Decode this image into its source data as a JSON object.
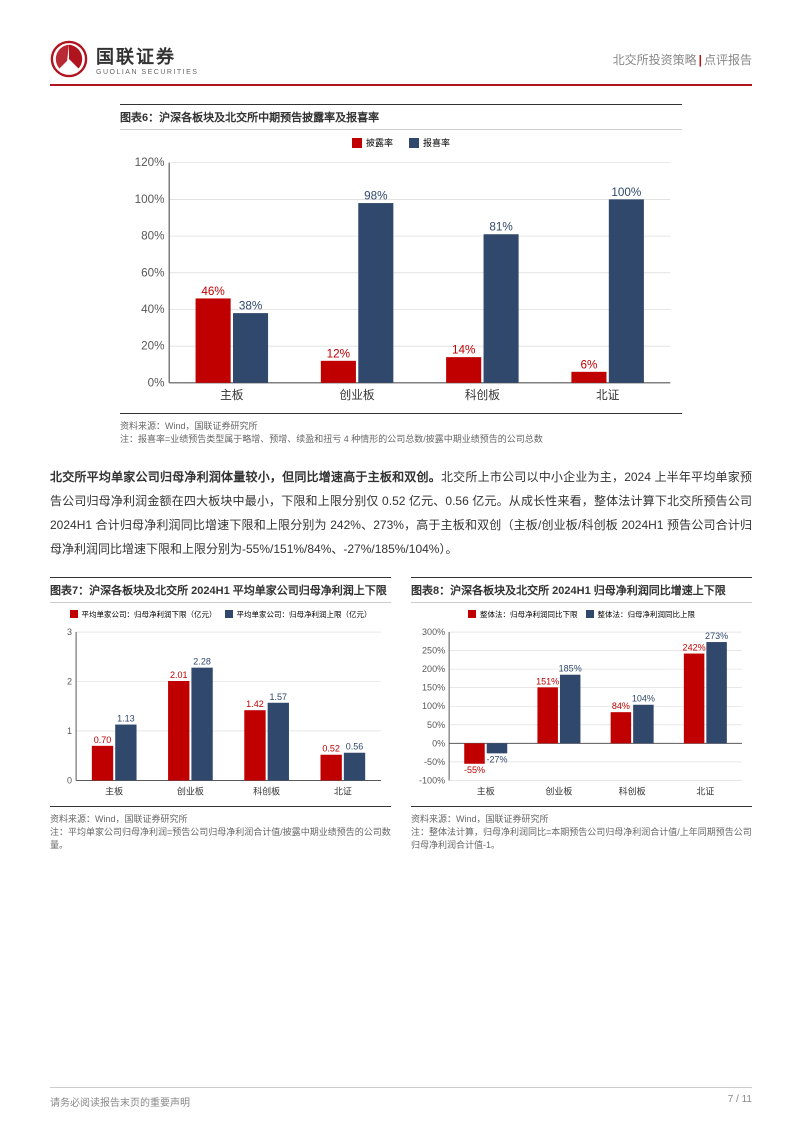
{
  "header": {
    "logo_cn": "国联证券",
    "logo_en": "GUOLIAN SECURITIES",
    "category": "北交所投资策略",
    "doc_type": "点评报告"
  },
  "colors": {
    "red": "#c00000",
    "blue": "#30486c",
    "axis": "#595959",
    "grid": "#d9d9d9",
    "brand_red": "#b0141e",
    "text": "#333333",
    "muted": "#888888"
  },
  "chart6": {
    "label": "图表6：",
    "title": "沪深各板块及北交所中期预告披露率及报喜率",
    "type": "bar",
    "categories": [
      "主板",
      "创业板",
      "科创板",
      "北证"
    ],
    "series": [
      {
        "name": "披露率",
        "color": "#c00000",
        "values": [
          46,
          12,
          14,
          6
        ],
        "labels": [
          "46%",
          "12%",
          "14%",
          "6%"
        ]
      },
      {
        "name": "报喜率",
        "color": "#30486c",
        "values": [
          38,
          98,
          81,
          100
        ],
        "labels": [
          "38%",
          "98%",
          "81%",
          "100%"
        ]
      }
    ],
    "y_ticks": [
      0,
      20,
      40,
      60,
      80,
      100,
      120
    ],
    "y_tick_labels": [
      "0%",
      "20%",
      "40%",
      "60%",
      "80%",
      "100%",
      "120%"
    ],
    "ylim": [
      0,
      120
    ],
    "source": "资料来源：Wind，国联证券研究所",
    "note": "注：报喜率=业绩预告类型属于略增、预增、续盈和扭亏 4 种情形的公司总数/披露中期业绩预告的公司总数"
  },
  "body_paragraph": {
    "bold": "北交所平均单家公司归母净利润体量较小，但同比增速高于主板和双创。",
    "rest": "北交所上市公司以中小企业为主，2024 上半年平均单家预告公司归母净利润金额在四大板块中最小，下限和上限分别仅 0.52 亿元、0.56 亿元。从成长性来看，整体法计算下北交所预告公司 2024H1 合计归母净利润同比增速下限和上限分别为 242%、273%，高于主板和双创（主板/创业板/科创板 2024H1 预告公司合计归母净利润同比增速下限和上限分别为-55%/151%/84%、-27%/185%/104%）。"
  },
  "chart7": {
    "label": "图表7：",
    "title": "沪深各板块及北交所 2024H1 平均单家公司归母净利润上下限",
    "type": "bar",
    "categories": [
      "主板",
      "创业板",
      "科创板",
      "北证"
    ],
    "series": [
      {
        "name": "平均单家公司：归母净利润下限（亿元）",
        "color": "#c00000",
        "values": [
          0.7,
          2.01,
          1.42,
          0.52
        ],
        "labels": [
          "0.70",
          "2.01",
          "1.42",
          "0.52"
        ]
      },
      {
        "name": "平均单家公司：归母净利润上限（亿元）",
        "color": "#30486c",
        "values": [
          1.13,
          2.28,
          1.57,
          0.56
        ],
        "labels": [
          "1.13",
          "2.28",
          "1.57",
          "0.56"
        ]
      }
    ],
    "y_ticks": [
      0,
      1,
      2,
      3
    ],
    "y_tick_labels": [
      "0",
      "1",
      "2",
      "3"
    ],
    "ylim": [
      0,
      3
    ],
    "source": "资料来源：Wind，国联证券研究所",
    "note": "注：平均单家公司归母净利润=预告公司归母净利润合计值/披露中期业绩预告的公司数量。"
  },
  "chart8": {
    "label": "图表8：",
    "title": "沪深各板块及北交所 2024H1 归母净利润同比增速上下限",
    "type": "bar",
    "categories": [
      "主板",
      "创业板",
      "科创板",
      "北证"
    ],
    "series": [
      {
        "name": "整体法：归母净利润同比下限",
        "color": "#c00000",
        "values": [
          -55,
          151,
          84,
          242
        ],
        "labels": [
          "-55%",
          "151%",
          "84%",
          "242%"
        ]
      },
      {
        "name": "整体法：归母净利润同比上限",
        "color": "#30486c",
        "values": [
          -27,
          185,
          104,
          273
        ],
        "labels": [
          "-27%",
          "185%",
          "104%",
          "273%"
        ]
      }
    ],
    "y_ticks": [
      -100,
      -50,
      0,
      50,
      100,
      150,
      200,
      250,
      300
    ],
    "y_tick_labels": [
      "-100%",
      "-50%",
      "0%",
      "50%",
      "100%",
      "150%",
      "200%",
      "250%",
      "300%"
    ],
    "ylim": [
      -100,
      300
    ],
    "source": "资料来源：Wind，国联证券研究所",
    "note": "注：整体法计算，归母净利润同比=本期预告公司归母净利润合计值/上年同期预告公司归母净利润合计值-1。"
  },
  "footer": {
    "disclaimer": "请务必阅读报告末页的重要声明",
    "page": "7 / 11"
  }
}
